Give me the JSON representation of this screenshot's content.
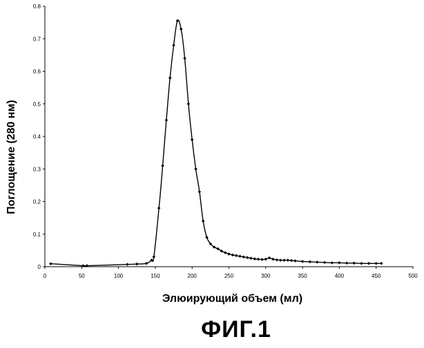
{
  "figure": {
    "caption": "ФИГ.1"
  },
  "chart_data": {
    "type": "line",
    "title": "",
    "xlabel": "Элюирующий объем (мл)",
    "ylabel": "Поглощение (280 нм)",
    "xlim": [
      0,
      500
    ],
    "ylim": [
      0,
      0.8
    ],
    "x_ticks": [
      0,
      50,
      100,
      150,
      200,
      250,
      300,
      350,
      400,
      450,
      500
    ],
    "x_tick_labels": [
      "0",
      "50",
      "100",
      "150",
      "200",
      "250",
      "300",
      "350",
      "400",
      "450",
      "500"
    ],
    "y_ticks": [
      0,
      0.1,
      0.2,
      0.3,
      0.4,
      0.5,
      0.6,
      0.7,
      0.8
    ],
    "y_tick_labels": [
      "0",
      "0.1",
      "0.2",
      "0.3",
      "0.4",
      "0.5",
      "0.6",
      "0.7",
      "0.8"
    ],
    "grid": false,
    "legend": "none",
    "line_color": "#000000",
    "series": [
      {
        "x": [
          8,
          52,
          57,
          112,
          125,
          138,
          145,
          148,
          155,
          160,
          165,
          170,
          175,
          180,
          185,
          190,
          195,
          200,
          205,
          210,
          215,
          220,
          225,
          230,
          235,
          240,
          245,
          250,
          255,
          260,
          265,
          270,
          275,
          280,
          285,
          290,
          295,
          300,
          305,
          310,
          315,
          320,
          325,
          330,
          335,
          340,
          350,
          360,
          370,
          380,
          390,
          400,
          410,
          420,
          430,
          440,
          450,
          457
        ],
        "y": [
          0.009,
          0.003,
          0.003,
          0.007,
          0.008,
          0.01,
          0.02,
          0.03,
          0.18,
          0.31,
          0.45,
          0.58,
          0.68,
          0.755,
          0.73,
          0.64,
          0.5,
          0.39,
          0.3,
          0.23,
          0.14,
          0.09,
          0.07,
          0.06,
          0.055,
          0.048,
          0.043,
          0.039,
          0.036,
          0.034,
          0.032,
          0.03,
          0.028,
          0.026,
          0.024,
          0.023,
          0.022,
          0.023,
          0.027,
          0.023,
          0.021,
          0.02,
          0.02,
          0.02,
          0.019,
          0.018,
          0.016,
          0.015,
          0.014,
          0.013,
          0.012,
          0.012,
          0.011,
          0.011,
          0.01,
          0.01,
          0.01,
          0.01
        ]
      }
    ]
  }
}
